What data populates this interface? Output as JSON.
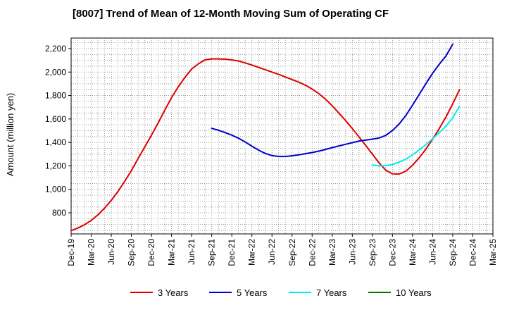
{
  "chart_data": {
    "type": "line",
    "title": "[8007]  Trend of Mean of 12-Month Moving Sum of Operating CF",
    "xlabel": "",
    "ylabel": "Amount (million yen)",
    "x_ticks": [
      "Dec-19",
      "Mar-20",
      "Jun-20",
      "Sep-20",
      "Dec-20",
      "Mar-21",
      "Jun-21",
      "Sep-21",
      "Dec-21",
      "Mar-22",
      "Jun-22",
      "Sep-22",
      "Dec-22",
      "Mar-23",
      "Jun-23",
      "Sep-23",
      "Dec-23",
      "Mar-24",
      "Jun-24",
      "Sep-24",
      "Dec-24",
      "Mar-25"
    ],
    "y_ticks": [
      800,
      1000,
      1200,
      1400,
      1600,
      1800,
      2000,
      2200
    ],
    "ylim": [
      620,
      2290
    ],
    "grid": true,
    "legend_position": "bottom",
    "series": [
      {
        "name": "3 Years",
        "color": "#dd0000",
        "start_index": 0,
        "values": [
          648,
          670,
          698,
          735,
          782,
          840,
          906,
          982,
          1068,
          1160,
          1262,
          1362,
          1462,
          1566,
          1676,
          1782,
          1874,
          1954,
          2026,
          2070,
          2104,
          2112,
          2112,
          2110,
          2104,
          2094,
          2078,
          2060,
          2040,
          2020,
          2000,
          1980,
          1958,
          1936,
          1914,
          1888,
          1855,
          1816,
          1768,
          1712,
          1650,
          1586,
          1518,
          1447,
          1375,
          1300,
          1225,
          1163,
          1132,
          1131,
          1155,
          1206,
          1270,
          1344,
          1428,
          1520,
          1618,
          1730,
          1848
        ]
      },
      {
        "name": "5 Years",
        "color": "#0000cc",
        "start_index": 21,
        "values": [
          1520,
          1504,
          1484,
          1462,
          1436,
          1404,
          1368,
          1334,
          1306,
          1288,
          1280,
          1280,
          1286,
          1294,
          1304,
          1314,
          1326,
          1340,
          1356,
          1370,
          1384,
          1398,
          1412,
          1420,
          1428,
          1438,
          1460,
          1502,
          1558,
          1630,
          1718,
          1810,
          1902,
          1990,
          2068,
          2138,
          2238
        ]
      },
      {
        "name": "7 Years",
        "color": "#00eeee",
        "start_index": 45,
        "values": [
          1208,
          1200,
          1202,
          1212,
          1232,
          1258,
          1294,
          1336,
          1382,
          1432,
          1484,
          1540,
          1610,
          1708
        ]
      },
      {
        "name": "10 Years",
        "color": "#007700",
        "start_index": 0,
        "values": []
      }
    ]
  }
}
